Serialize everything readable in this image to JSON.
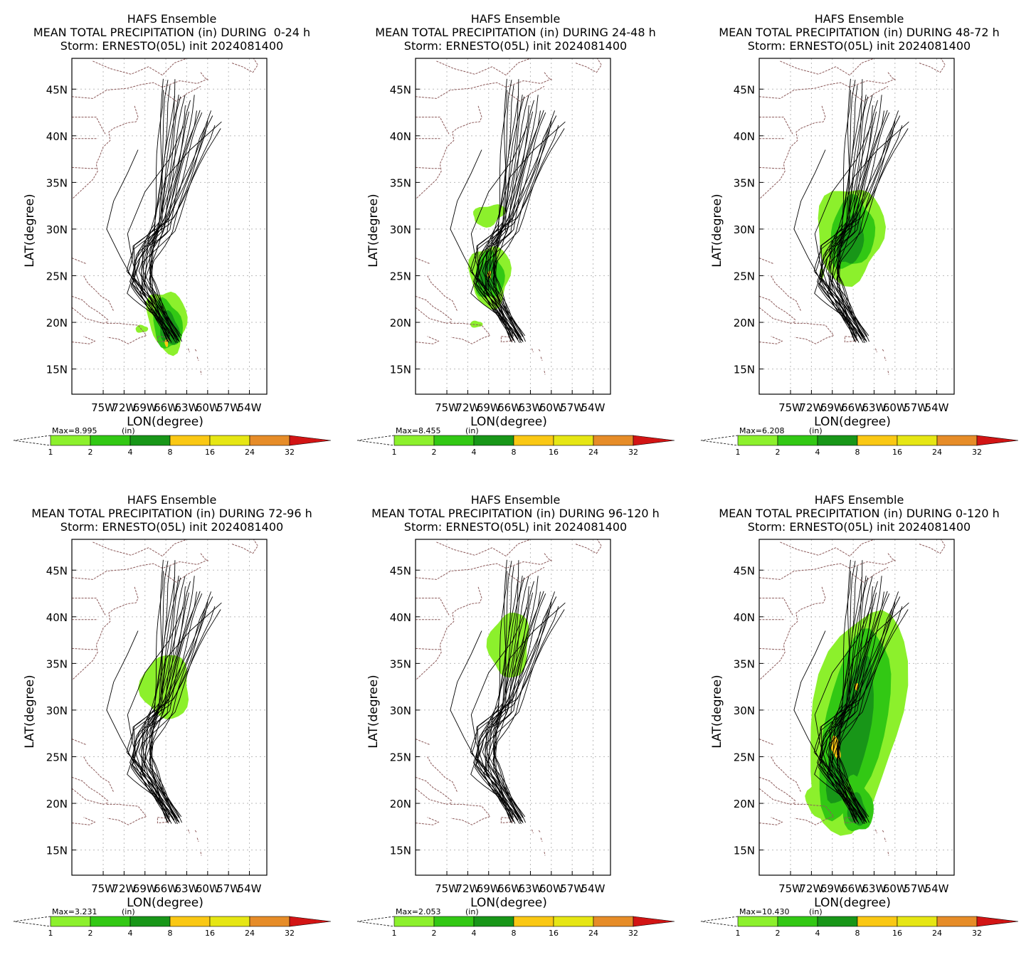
{
  "panels": [
    {
      "title1": "HAFS Ensemble",
      "title2": "MEAN TOTAL PRECIPITATION (in) DURING  0-24 h",
      "title3": "Storm: ERNESTO(05L) init 2024081400",
      "max_label": "Max=8.995",
      "max_unit": "(in)",
      "max_value": 8.995
    },
    {
      "title1": "HAFS Ensemble",
      "title2": "MEAN TOTAL PRECIPITATION (in) DURING 24-48 h",
      "title3": "Storm: ERNESTO(05L) init 2024081400",
      "max_label": "Max=8.455",
      "max_unit": "(in)",
      "max_value": 8.455
    },
    {
      "title1": "HAFS Ensemble",
      "title2": "MEAN TOTAL PRECIPITATION (in) DURING 48-72 h",
      "title3": "Storm: ERNESTO(05L) init 2024081400",
      "max_label": "Max=6.208",
      "max_unit": "(in)",
      "max_value": 6.208
    },
    {
      "title1": "HAFS Ensemble",
      "title2": "MEAN TOTAL PRECIPITATION (in) DURING 72-96 h",
      "title3": "Storm: ERNESTO(05L) init 2024081400",
      "max_label": "Max=3.231",
      "max_unit": "(in)",
      "max_value": 3.231
    },
    {
      "title1": "HAFS Ensemble",
      "title2": "MEAN TOTAL PRECIPITATION (in) DURING 96-120 h",
      "title3": "Storm: ERNESTO(05L) init 2024081400",
      "max_label": "Max=2.053",
      "max_unit": "(in)",
      "max_value": 2.053
    },
    {
      "title1": "HAFS Ensemble",
      "title2": "MEAN TOTAL PRECIPITATION (in) DURING 0-120 h",
      "title3": "Storm: ERNESTO(05L) init 2024081400",
      "max_label": "Max=10.430",
      "max_unit": "(in)",
      "max_value": 10.43
    }
  ],
  "axes": {
    "xlabel": "LON(degree)",
    "ylabel": "LAT(degree)",
    "lon_ticks": [
      "75W",
      "72W",
      "69W",
      "66W",
      "63W",
      "60W",
      "57W",
      "54W"
    ],
    "lat_ticks": [
      "45N",
      "40N",
      "35N",
      "30N",
      "25N",
      "20N",
      "15N"
    ]
  },
  "colorbar": {
    "levels": [
      "1",
      "2",
      "4",
      "8",
      "16",
      "24",
      "32"
    ],
    "colors": [
      "#8cf02c",
      "#32c814",
      "#189618",
      "#fac814",
      "#e6e614",
      "#e68c28",
      "#d21414"
    ],
    "cap_color": "#c81414"
  },
  "map_colors": {
    "coast": "#8c5a5a",
    "track": "#000000",
    "grid": "#bbbbbb"
  }
}
